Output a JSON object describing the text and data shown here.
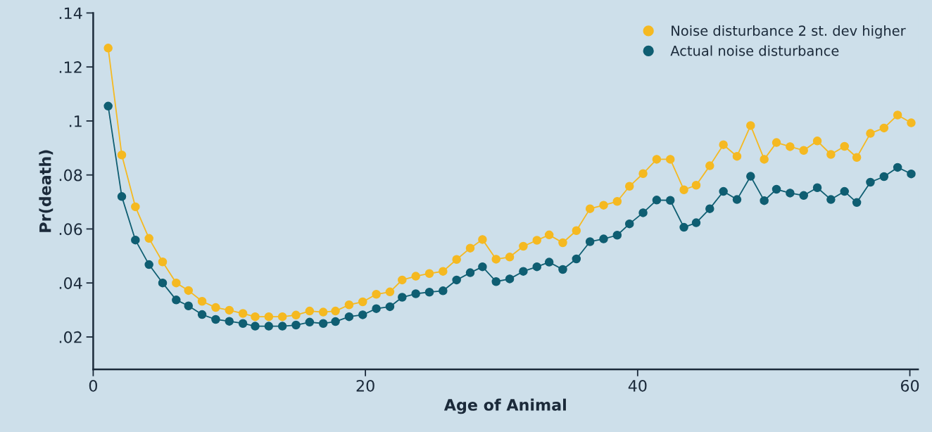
{
  "chart_data": {
    "type": "line",
    "xlabel": "Age of Animal",
    "ylabel": "Pr(death)",
    "x": [
      1.1,
      2.1,
      3.1,
      4.1,
      5.1,
      6.1,
      7.0,
      8.0,
      9.0,
      10.0,
      11.0,
      11.9,
      12.9,
      13.9,
      14.9,
      15.9,
      16.9,
      17.8,
      18.8,
      19.8,
      20.8,
      21.8,
      22.7,
      23.7,
      24.7,
      25.7,
      26.7,
      27.7,
      28.6,
      29.6,
      30.6,
      31.6,
      32.6,
      33.5,
      34.5,
      35.5,
      36.5,
      37.5,
      38.5,
      39.4,
      40.4,
      41.4,
      42.4,
      43.4,
      44.3,
      45.3,
      46.3,
      47.3,
      48.3,
      49.3,
      50.2,
      51.2,
      52.2,
      53.2,
      54.2,
      55.2,
      56.1,
      57.1,
      58.1,
      59.1,
      60.1
    ],
    "series": [
      {
        "name": "Noise disturbance 2 st. dev higher",
        "color": "#f5b921",
        "values": [
          0.127,
          0.0874,
          0.0682,
          0.0565,
          0.0478,
          0.04,
          0.0372,
          0.0332,
          0.0309,
          0.0299,
          0.0287,
          0.0275,
          0.0275,
          0.0275,
          0.0281,
          0.0296,
          0.0292,
          0.0296,
          0.0319,
          0.033,
          0.0358,
          0.0367,
          0.0411,
          0.0425,
          0.0435,
          0.0443,
          0.0487,
          0.0529,
          0.0561,
          0.0488,
          0.0496,
          0.0536,
          0.0558,
          0.0578,
          0.0549,
          0.0594,
          0.0675,
          0.0688,
          0.0702,
          0.0758,
          0.0805,
          0.0858,
          0.0858,
          0.0745,
          0.0762,
          0.0834,
          0.0912,
          0.0869,
          0.0983,
          0.0858,
          0.092,
          0.0905,
          0.0891,
          0.0926,
          0.0876,
          0.0906,
          0.0865,
          0.0954,
          0.0974,
          0.1022,
          0.0993
        ]
      },
      {
        "name": "Actual noise disturbance",
        "color": "#0f5e72",
        "values": [
          0.1055,
          0.072,
          0.0559,
          0.0468,
          0.04,
          0.0337,
          0.0315,
          0.0283,
          0.0265,
          0.0258,
          0.025,
          0.024,
          0.024,
          0.024,
          0.0244,
          0.0255,
          0.025,
          0.0257,
          0.0275,
          0.0282,
          0.0305,
          0.0312,
          0.0347,
          0.036,
          0.0366,
          0.0371,
          0.0411,
          0.0438,
          0.046,
          0.0405,
          0.0415,
          0.0443,
          0.046,
          0.0477,
          0.045,
          0.0489,
          0.0553,
          0.0563,
          0.0577,
          0.0619,
          0.066,
          0.0707,
          0.0706,
          0.0606,
          0.0623,
          0.0675,
          0.0739,
          0.0709,
          0.0795,
          0.0705,
          0.0747,
          0.0733,
          0.0724,
          0.0753,
          0.0709,
          0.0739,
          0.0698,
          0.0773,
          0.0794,
          0.0828,
          0.0804
        ]
      }
    ],
    "xlim": [
      0,
      60.6
    ],
    "xticks": [
      0,
      20,
      40,
      60
    ],
    "ylim": [
      0.008,
      0.14
    ],
    "yticks": [
      {
        "value": 0.02,
        "label": ".02"
      },
      {
        "value": 0.04,
        "label": ".04"
      },
      {
        "value": 0.06,
        "label": ".06"
      },
      {
        "value": 0.08,
        "label": ".08"
      },
      {
        "value": 0.1,
        "label": ".1"
      },
      {
        "value": 0.12,
        "label": ".12"
      },
      {
        "value": 0.14,
        "label": ".14"
      }
    ],
    "marker": "circle",
    "line_style": "solid",
    "legend": "top right",
    "grid": false
  }
}
